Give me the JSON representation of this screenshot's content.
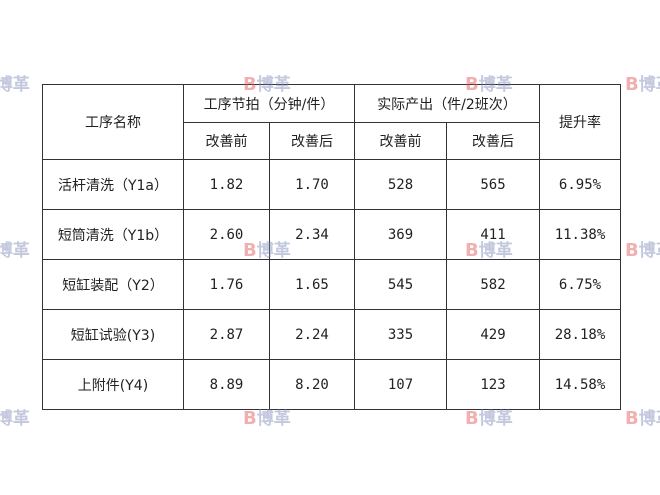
{
  "watermark": {
    "logo_letter": "B",
    "text": "博革",
    "colors": {
      "logo": "#e0524f",
      "text": "#7c86b8"
    }
  },
  "table": {
    "header": {
      "process_name": "工序名称",
      "takt_group": "工序节拍（分钟/件）",
      "output_group": "实际产出（件/2班次）",
      "improvement_rate": "提升率",
      "before": "改善前",
      "after": "改善后"
    },
    "rows": [
      {
        "name": "活杆清洗（Y1a）",
        "takt_before": "1.82",
        "takt_after": "1.70",
        "output_before": "528",
        "output_after": "565",
        "rate": "6.95%"
      },
      {
        "name": "短筒清洗（Y1b）",
        "takt_before": "2.60",
        "takt_after": "2.34",
        "output_before": "369",
        "output_after": "411",
        "rate": "11.38%"
      },
      {
        "name": "短缸装配（Y2）",
        "takt_before": "1.76",
        "takt_after": "1.65",
        "output_before": "545",
        "output_after": "582",
        "rate": "6.75%"
      },
      {
        "name": "短缸试验(Y3)",
        "takt_before": "2.87",
        "takt_after": "2.24",
        "output_before": "335",
        "output_after": "429",
        "rate": "28.18%"
      },
      {
        "name": "上附件(Y4)",
        "takt_before": "8.89",
        "takt_after": "8.20",
        "output_before": "107",
        "output_after": "123",
        "rate": "14.58%"
      }
    ]
  }
}
